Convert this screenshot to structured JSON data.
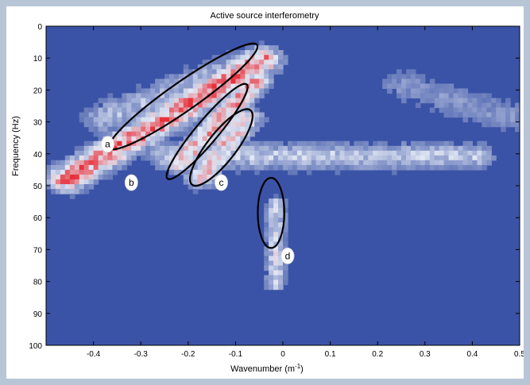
{
  "chart_data": {
    "type": "heatmap",
    "title": "Active source interferometry",
    "xlabel": "Wavenumber (m",
    "xlabel_sup": "-1",
    "xlabel_close": ")",
    "ylabel": "Frequency (Hz)",
    "xlim": [
      -0.5,
      0.5
    ],
    "ylim": [
      0,
      100
    ],
    "y_inverted": true,
    "grid": false,
    "x_ticks": [
      -0.4,
      -0.3,
      -0.2,
      -0.1,
      0,
      0.1,
      0.2,
      0.3,
      0.4,
      0.5
    ],
    "x_tick_labels": [
      "-0.4",
      "-0.3",
      "-0.2",
      "-0.1",
      "0",
      "0.1",
      "0.2",
      "0.3",
      "0.4",
      "0.5"
    ],
    "y_ticks": [
      0,
      10,
      20,
      30,
      40,
      50,
      60,
      70,
      80,
      90,
      100
    ],
    "y_tick_labels": [
      "0",
      "10",
      "20",
      "30",
      "40",
      "50",
      "60",
      "70",
      "80",
      "90",
      "100"
    ],
    "colors": {
      "background": "#3b53a6",
      "low": "#dfe6f4",
      "high": "#e8303a",
      "outline": "#000000",
      "frame": "#b8c5d6"
    },
    "bands": [
      {
        "k0": -0.05,
        "f0": 10,
        "k1": -0.46,
        "f1": 47,
        "width": 0.028,
        "peak": 0.95
      },
      {
        "k0": -0.06,
        "f0": 16,
        "k1": -0.22,
        "f1": 42,
        "width": 0.02,
        "peak": 0.85
      },
      {
        "k0": -0.08,
        "f0": 28,
        "k1": -0.18,
        "f1": 47,
        "width": 0.022,
        "peak": 0.7
      },
      {
        "k0": -0.38,
        "f0": 28,
        "k1": -0.1,
        "f1": 12,
        "width": 0.035,
        "peak": 0.4
      },
      {
        "k0": -0.25,
        "f0": 40,
        "k1": 0.4,
        "f1": 40,
        "width": 0.03,
        "peak": 0.45
      },
      {
        "k0": 0.25,
        "f0": 18,
        "k1": 0.48,
        "f1": 28,
        "width": 0.04,
        "peak": 0.25
      },
      {
        "k0": -0.02,
        "f0": 55,
        "k1": -0.02,
        "f1": 80,
        "width": 0.015,
        "peak": 0.5
      }
    ],
    "annotations": [
      {
        "label": "a",
        "k": -0.37,
        "f": 37,
        "ellipse": {
          "k": -0.21,
          "f": 22,
          "rk": 0.19,
          "rf": 4.5,
          "angle": -35
        }
      },
      {
        "label": "b",
        "k": -0.32,
        "f": 49,
        "ellipse": {
          "k": -0.16,
          "f": 33,
          "rk": 0.13,
          "rf": 3.5,
          "angle": -50
        }
      },
      {
        "label": "c",
        "k": -0.13,
        "f": 49,
        "ellipse": {
          "k": -0.13,
          "f": 38,
          "rk": 0.1,
          "rf": 4.5,
          "angle": -52
        }
      },
      {
        "label": "d",
        "k": 0.01,
        "f": 72,
        "ellipse": {
          "k": -0.025,
          "f": 58.5,
          "rk": 0.028,
          "rf": 11,
          "angle": 0
        }
      }
    ]
  }
}
